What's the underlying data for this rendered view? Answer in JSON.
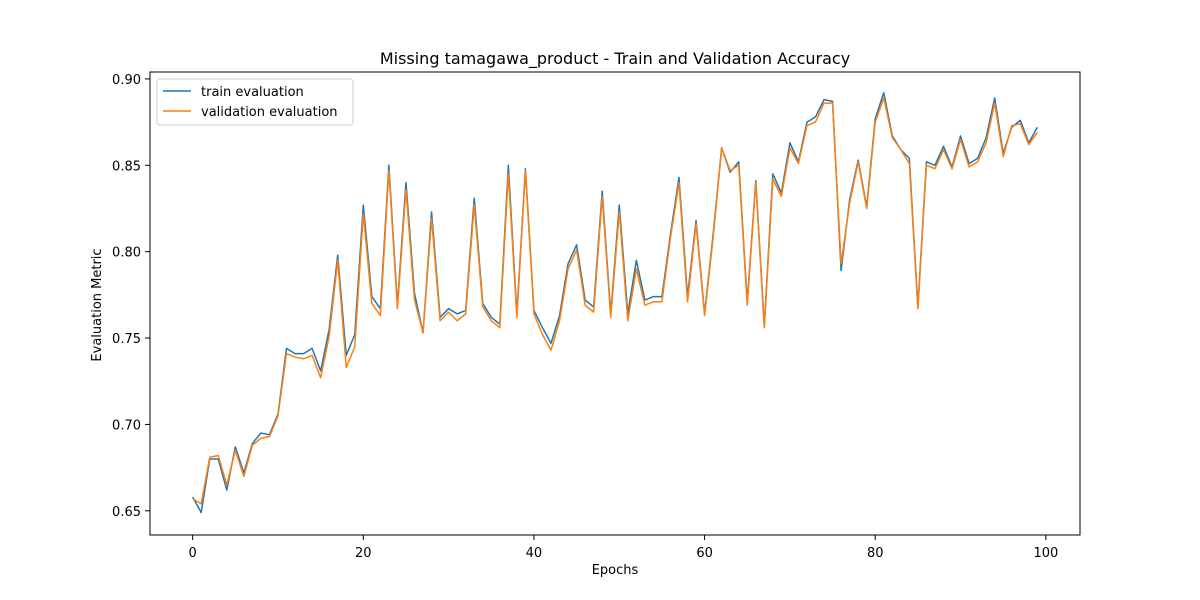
{
  "chart_data": {
    "type": "line",
    "title": "Missing tamagawa_product - Train and Validation Accuracy",
    "xlabel": "Epochs",
    "ylabel": "Evaluation Metric",
    "xlim": [
      -5,
      104
    ],
    "ylim": [
      0.636,
      0.904
    ],
    "xticks": [
      0,
      20,
      40,
      60,
      80,
      100
    ],
    "yticks": [
      0.65,
      0.7,
      0.75,
      0.8,
      0.85,
      0.9
    ],
    "xtick_labels": [
      "0",
      "20",
      "40",
      "60",
      "80",
      "100"
    ],
    "ytick_labels": [
      "0.65",
      "0.70",
      "0.75",
      "0.80",
      "0.85",
      "0.90"
    ],
    "grid": false,
    "legend_position": "top-left",
    "x": [
      0,
      1,
      2,
      3,
      4,
      5,
      6,
      7,
      8,
      9,
      10,
      11,
      12,
      13,
      14,
      15,
      16,
      17,
      18,
      19,
      20,
      21,
      22,
      23,
      24,
      25,
      26,
      27,
      28,
      29,
      30,
      31,
      32,
      33,
      34,
      35,
      36,
      37,
      38,
      39,
      40,
      41,
      42,
      43,
      44,
      45,
      46,
      47,
      48,
      49,
      50,
      51,
      52,
      53,
      54,
      55,
      56,
      57,
      58,
      59,
      60,
      61,
      62,
      63,
      64,
      65,
      66,
      67,
      68,
      69,
      70,
      71,
      72,
      73,
      74,
      75,
      76,
      77,
      78,
      79,
      80,
      81,
      82,
      83,
      84,
      85,
      86,
      87,
      88,
      89,
      90,
      91,
      92,
      93,
      94,
      95,
      96,
      97,
      98,
      99
    ],
    "series": [
      {
        "name": "train evaluation",
        "color": "#1f77b4",
        "values": [
          0.658,
          0.649,
          0.68,
          0.68,
          0.662,
          0.687,
          0.672,
          0.689,
          0.695,
          0.694,
          0.706,
          0.744,
          0.741,
          0.741,
          0.744,
          0.731,
          0.755,
          0.798,
          0.74,
          0.752,
          0.827,
          0.774,
          0.767,
          0.85,
          0.769,
          0.84,
          0.776,
          0.753,
          0.823,
          0.762,
          0.767,
          0.764,
          0.766,
          0.831,
          0.77,
          0.762,
          0.758,
          0.85,
          0.764,
          0.848,
          0.766,
          0.756,
          0.747,
          0.763,
          0.793,
          0.804,
          0.772,
          0.768,
          0.835,
          0.764,
          0.827,
          0.764,
          0.795,
          0.772,
          0.774,
          0.774,
          0.81,
          0.843,
          0.774,
          0.818,
          0.764,
          0.81,
          0.86,
          0.846,
          0.852,
          0.771,
          0.841,
          0.757,
          0.845,
          0.834,
          0.863,
          0.852,
          0.875,
          0.878,
          0.888,
          0.887,
          0.789,
          0.83,
          0.853,
          0.826,
          0.877,
          0.892,
          0.867,
          0.859,
          0.854,
          0.768,
          0.852,
          0.85,
          0.861,
          0.849,
          0.867,
          0.851,
          0.854,
          0.866,
          0.889,
          0.857,
          0.872,
          0.876,
          0.863,
          0.872
        ]
      },
      {
        "name": "validation evaluation",
        "color": "#ff7f0e",
        "values": [
          0.657,
          0.654,
          0.681,
          0.682,
          0.665,
          0.685,
          0.67,
          0.688,
          0.692,
          0.693,
          0.705,
          0.741,
          0.739,
          0.738,
          0.74,
          0.727,
          0.751,
          0.795,
          0.733,
          0.745,
          0.822,
          0.77,
          0.763,
          0.847,
          0.767,
          0.836,
          0.772,
          0.753,
          0.819,
          0.76,
          0.765,
          0.76,
          0.764,
          0.827,
          0.768,
          0.76,
          0.756,
          0.845,
          0.762,
          0.847,
          0.764,
          0.752,
          0.743,
          0.76,
          0.79,
          0.801,
          0.769,
          0.765,
          0.832,
          0.762,
          0.823,
          0.76,
          0.79,
          0.769,
          0.771,
          0.771,
          0.808,
          0.84,
          0.771,
          0.816,
          0.763,
          0.808,
          0.86,
          0.847,
          0.85,
          0.769,
          0.84,
          0.756,
          0.842,
          0.832,
          0.86,
          0.851,
          0.873,
          0.875,
          0.886,
          0.886,
          0.793,
          0.828,
          0.852,
          0.825,
          0.875,
          0.889,
          0.866,
          0.859,
          0.851,
          0.767,
          0.85,
          0.848,
          0.859,
          0.848,
          0.865,
          0.849,
          0.852,
          0.863,
          0.886,
          0.855,
          0.873,
          0.874,
          0.862,
          0.869
        ]
      }
    ]
  }
}
